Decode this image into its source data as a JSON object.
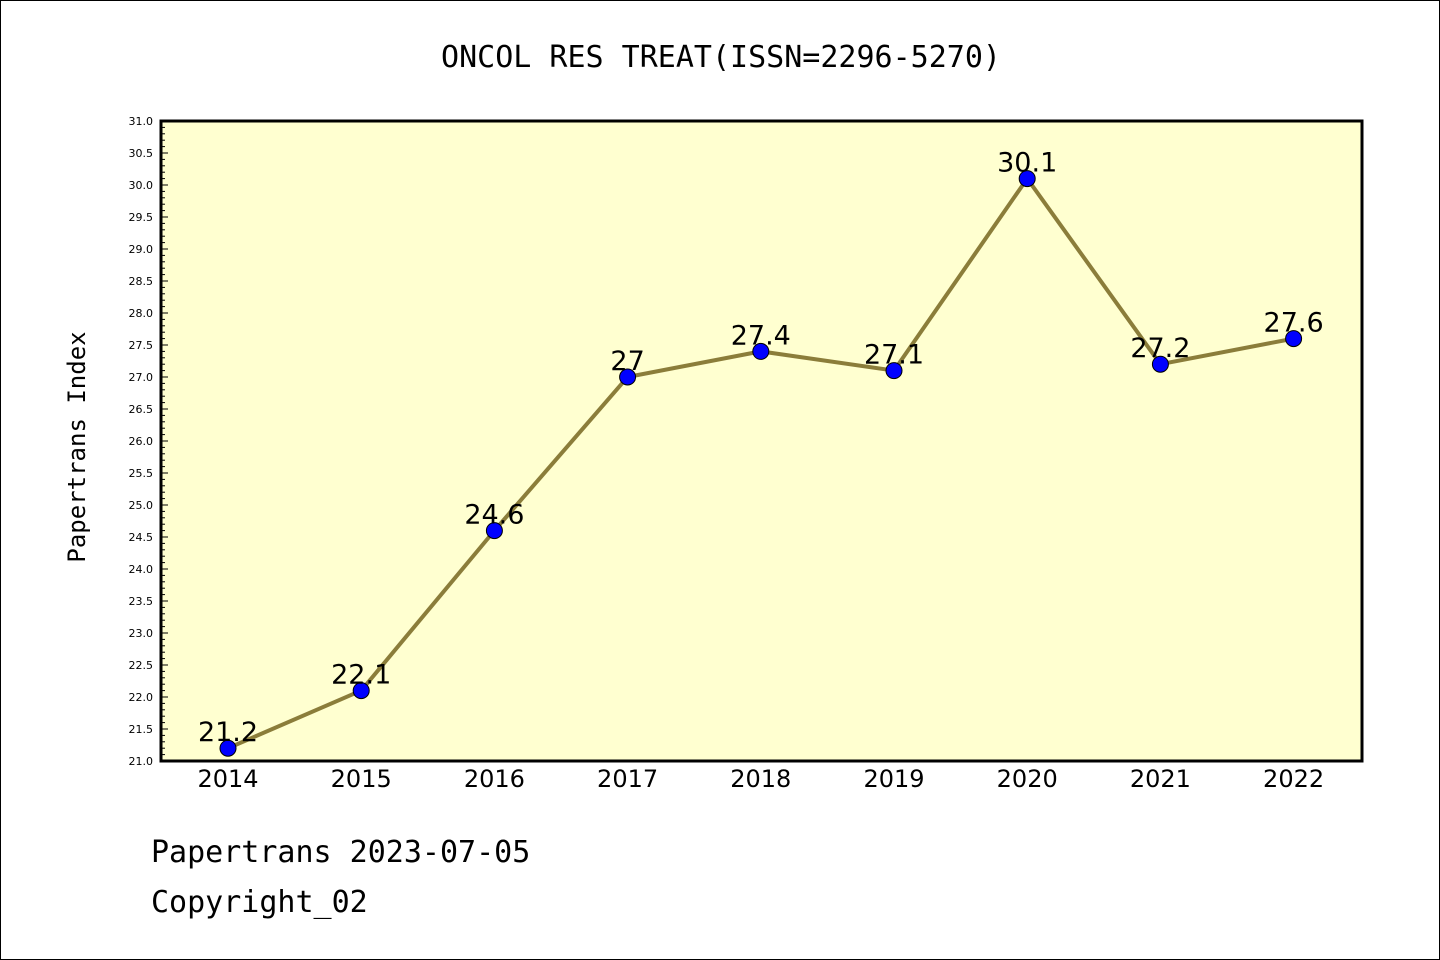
{
  "chart_data": {
    "type": "line",
    "title": "ONCOL RES TREAT(ISSN=2296-5270)",
    "xlabel": "",
    "ylabel": "Papertrans Index",
    "categories": [
      "2014",
      "2015",
      "2016",
      "2017",
      "2018",
      "2019",
      "2020",
      "2021",
      "2022"
    ],
    "values": [
      21.2,
      22.1,
      24.6,
      27,
      27.4,
      27.1,
      30.1,
      27.2,
      27.6
    ],
    "data_labels": [
      "21.2",
      "22.1",
      "24.6",
      "27",
      "27.4",
      "27.1",
      "30.1",
      "27.2",
      "27.6"
    ],
    "ylim": [
      21.0,
      31.0
    ],
    "ytick_labels": [
      "21.0",
      "21.5",
      "22.0",
      "22.5",
      "23.0",
      "23.5",
      "24.0",
      "24.5",
      "25.0",
      "25.5",
      "26.0",
      "26.5",
      "27.0",
      "27.5",
      "28.0",
      "28.5",
      "29.0",
      "29.5",
      "30.0",
      "30.5",
      "31.0"
    ],
    "grid": false,
    "legend": "none",
    "colors": {
      "plot_bg": "#ffffd0",
      "line": "#8b7d3a",
      "marker": "#0000ff"
    }
  },
  "footer": {
    "line1": "Papertrans 2023-07-05",
    "line2": "Copyright_02"
  }
}
